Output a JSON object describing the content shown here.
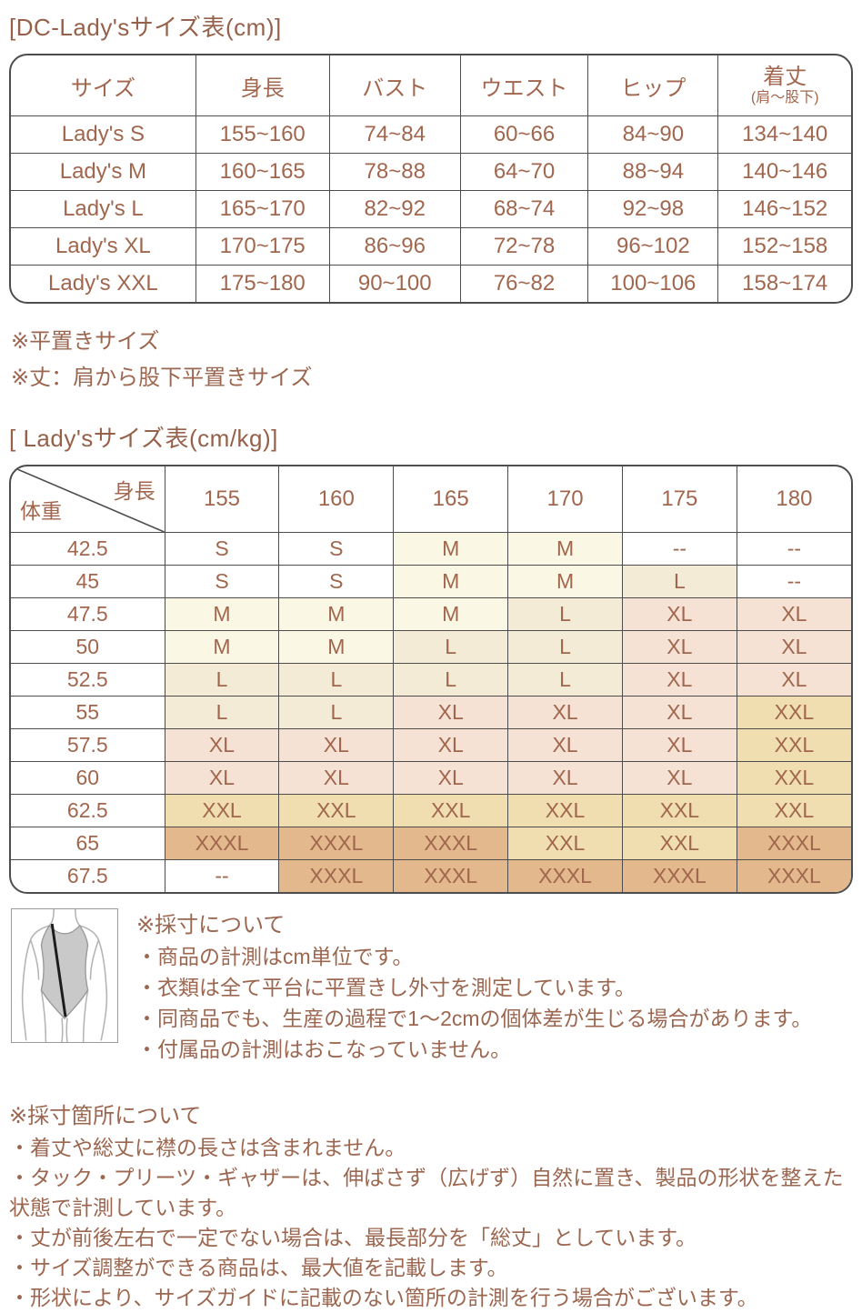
{
  "colors": {
    "text_brown": "#9c6750",
    "border_dark": "#4d4d4d",
    "size_cell_colors": {
      "S": "#ffffff",
      "M": "#faf7e4",
      "L": "#f3ebd6",
      "XL": "#f6e2d5",
      "XXL": "#f0deb0",
      "XXXL": "#e2b88c",
      "--": "#ffffff"
    }
  },
  "table1": {
    "title": "[DC-Lady'sサイズ表(cm)]",
    "headers": [
      "サイズ",
      "身長",
      "バスト",
      "ウエスト",
      "ヒップ"
    ],
    "last_header_main": "着丈",
    "last_header_sub": "(肩～股下)",
    "rows": [
      [
        "Lady's S",
        "155~160",
        "74~84",
        "60~66",
        "84~90",
        "134~140"
      ],
      [
        "Lady's M",
        "160~165",
        "78~88",
        "64~70",
        "88~94",
        "140~146"
      ],
      [
        "Lady's L",
        "165~170",
        "82~92",
        "68~74",
        "92~98",
        "146~152"
      ],
      [
        "Lady's XL",
        "170~175",
        "86~96",
        "72~78",
        "96~102",
        "152~158"
      ],
      [
        "Lady's XXL",
        "175~180",
        "90~100",
        "76~82",
        "100~106",
        "158~174"
      ]
    ]
  },
  "mid_notes": [
    "※平置きサイズ",
    "※丈：肩から股下平置きサイズ"
  ],
  "table2": {
    "title": "[ Lady'sサイズ表(cm/kg)]",
    "corner_top_label": "身長",
    "corner_bottom_label": "体重",
    "height_headers": [
      "155",
      "160",
      "165",
      "170",
      "175",
      "180"
    ],
    "rows": [
      {
        "weight": "42.5",
        "cells": [
          "S",
          "S",
          "M",
          "M",
          "--",
          "--"
        ]
      },
      {
        "weight": "45",
        "cells": [
          "S",
          "S",
          "M",
          "M",
          "L",
          "--"
        ]
      },
      {
        "weight": "47.5",
        "cells": [
          "M",
          "M",
          "M",
          "L",
          "XL",
          "XL"
        ]
      },
      {
        "weight": "50",
        "cells": [
          "M",
          "M",
          "L",
          "L",
          "XL",
          "XL"
        ]
      },
      {
        "weight": "52.5",
        "cells": [
          "L",
          "L",
          "L",
          "L",
          "XL",
          "XL"
        ]
      },
      {
        "weight": "55",
        "cells": [
          "L",
          "L",
          "XL",
          "XL",
          "XL",
          "XXL"
        ]
      },
      {
        "weight": "57.5",
        "cells": [
          "XL",
          "XL",
          "XL",
          "XL",
          "XL",
          "XXL"
        ]
      },
      {
        "weight": "60",
        "cells": [
          "XL",
          "XL",
          "XL",
          "XL",
          "XL",
          "XXL"
        ]
      },
      {
        "weight": "62.5",
        "cells": [
          "XXL",
          "XXL",
          "XXL",
          "XXL",
          "XXL",
          "XXL"
        ]
      },
      {
        "weight": "65",
        "cells": [
          "XXXL",
          "XXXL",
          "XXXL",
          "XXL",
          "XXL",
          "XXXL"
        ]
      },
      {
        "weight": "67.5",
        "cells": [
          "--",
          "XXXL",
          "XXXL",
          "XXXL",
          "XXXL",
          "XXXL"
        ]
      }
    ]
  },
  "measurement_notes": {
    "heading": "※採寸について",
    "items": [
      "・商品の計測はcm単位です。",
      "・衣類は全て平台に平置きし外寸を測定しています。",
      "・同商品でも、生産の過程で1〜2cmの個体差が生じる場合があります。",
      "・付属品の計測はおこなっていません。"
    ]
  },
  "measurement_point_notes": {
    "heading": "※採寸箇所について",
    "items": [
      "・着丈や総丈に襟の長さは含まれません。",
      "・タック・プリーツ・ギャザーは、伸ばさず（広げず）自然に置き、製品の形状を整えた状態で計測しています。",
      "・丈が前後左右で一定でない場合は、最長部分を「総丈」としています。",
      "・サイズ調整ができる商品は、最大値を記載します。",
      "・形状により、サイズガイドに記載のない箇所の計測を行う場合がございます。"
    ]
  },
  "illustration": {
    "name": "bodysuit-length-measurement-diagram"
  }
}
